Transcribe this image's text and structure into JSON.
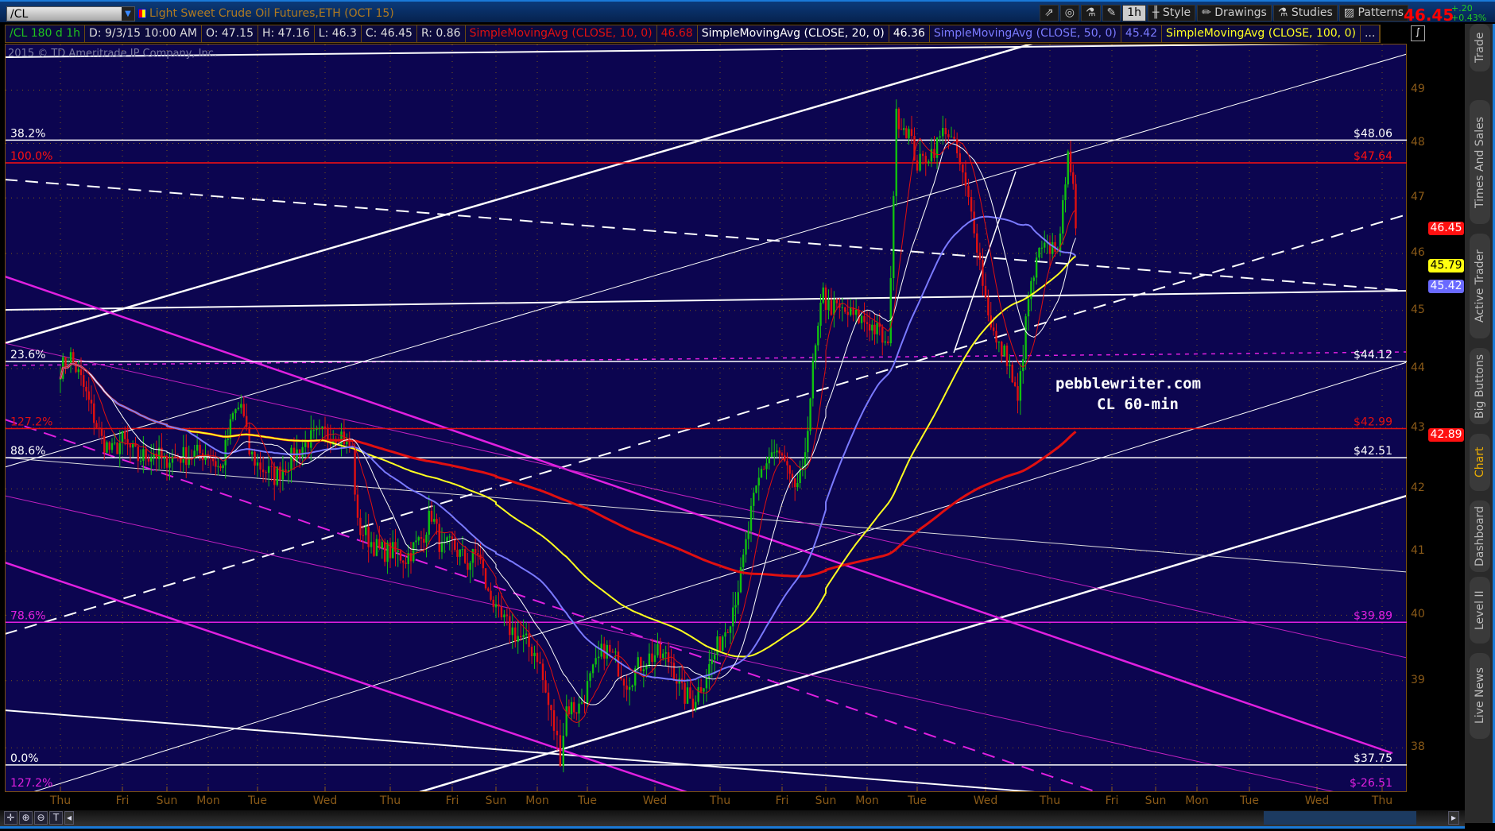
{
  "topbar": {
    "symbol": "/CL",
    "title": "Light Sweet Crude Oil Futures,ETH (OCT 15)",
    "tools": [
      "share-icon",
      "settings-icon",
      "studies-quick-icon",
      "wrench-icon"
    ],
    "aggregation": "1h",
    "style": "Style",
    "drawings": "Drawings",
    "studies": "Studies",
    "patterns": "Patterns",
    "last": "46.45",
    "change": "+.20",
    "change_pct": "+0.43%"
  },
  "studies_header": {
    "items": [
      {
        "text": "/CL 180 d 1h",
        "color": "#1fc21f"
      },
      {
        "text": "D: 9/3/15 10:00 AM",
        "color": "#ddd"
      },
      {
        "text": "O: 47.15",
        "color": "#ddd"
      },
      {
        "text": "H: 47.16",
        "color": "#ddd"
      },
      {
        "text": "L: 46.3",
        "color": "#ddd"
      },
      {
        "text": "C: 46.45",
        "color": "#ddd"
      },
      {
        "text": "R: 0.86",
        "color": "#ddd"
      },
      {
        "text": "SimpleMovingAvg (CLOSE, 10, 0)",
        "color": "#e01010"
      },
      {
        "text": "46.68",
        "color": "#e01010"
      },
      {
        "text": "SimpleMovingAvg (CLOSE, 20, 0)",
        "color": "#fff"
      },
      {
        "text": "46.36",
        "color": "#fff"
      },
      {
        "text": "SimpleMovingAvg (CLOSE, 50, 0)",
        "color": "#7a7aff"
      },
      {
        "text": "45.42",
        "color": "#7a7aff"
      },
      {
        "text": "SimpleMovingAvg (CLOSE, 100, 0)",
        "color": "#ffff20"
      },
      {
        "text": "...",
        "color": "#ddd"
      }
    ]
  },
  "copyright": "2015 © TD Ameritrade IP Company, Inc.",
  "watermark": {
    "line1": "pebblewriter.com",
    "line2": "CL 60-min"
  },
  "fib_levels": [
    {
      "pct": "38.2%",
      "price": 48.06,
      "label": "$48.06",
      "color": "#ffffff"
    },
    {
      "pct": "100.0%",
      "price": 47.64,
      "label": "$47.64",
      "color": "#ff1010"
    },
    {
      "pct": "23.6%",
      "price": 44.12,
      "label": "$44.12",
      "color": "#ffffff"
    },
    {
      "pct": "127.2%",
      "price": 42.99,
      "label": "$42.99",
      "color": "#e01010"
    },
    {
      "pct": "88.6%",
      "price": 42.51,
      "label": "$42.51",
      "color": "#ffffff"
    },
    {
      "pct": "78.6%",
      "price": 39.89,
      "label": "$39.89",
      "color": "#e020e0"
    },
    {
      "pct": "0.0%",
      "price": 37.75,
      "label": "$37.75",
      "color": "#ffffff"
    },
    {
      "pct": "127.2%",
      "price": -26.51,
      "label": "$-26.51",
      "color": "#e020e0"
    }
  ],
  "price_tags": [
    {
      "value": "46.45",
      "price": 46.45,
      "bg": "#ff1010",
      "fg": "#fff"
    },
    {
      "value": "45.79",
      "price": 45.79,
      "bg": "#ffff10",
      "fg": "#000"
    },
    {
      "value": "45.42",
      "price": 45.42,
      "bg": "#6a6aff",
      "fg": "#fff"
    },
    {
      "value": "42.89",
      "price": 42.89,
      "bg": "#ff1010",
      "fg": "#fff"
    }
  ],
  "sidetabs": [
    "Trade",
    "Times And Sales",
    "Active Trader",
    "Big Buttons",
    "Chart",
    "Dashboard",
    "Level II",
    "Live News"
  ],
  "active_tab": "Chart",
  "bottom_tools": [
    "crosshair-icon",
    "zoom-in-icon",
    "zoom-out-icon",
    "text-tool-icon"
  ],
  "chart_data": {
    "type": "candlestick",
    "title": "",
    "y_scale": "log",
    "ylim": [
      37.5,
      49.6
    ],
    "y_ticks": [
      38,
      39,
      40,
      41,
      42,
      43,
      44,
      45,
      46,
      47,
      48,
      49
    ],
    "grid": true,
    "x_ticks": [
      {
        "label": "Thu",
        "date": "8/13"
      },
      {
        "label": "Fri",
        "date": "8/14"
      },
      {
        "label": "Sun",
        "date": "8/16"
      },
      {
        "label": "Mon",
        "date": "8/17"
      },
      {
        "label": "Tue",
        "date": "8/18"
      },
      {
        "label": "Wed",
        "date": "8/19"
      },
      {
        "label": "Thu",
        "date": "8/20"
      },
      {
        "label": "Fri",
        "date": "8/21"
      },
      {
        "label": "Sun",
        "date": "8/23"
      },
      {
        "label": "Mon",
        "date": "8/24"
      },
      {
        "label": "Tue",
        "date": "8/25"
      },
      {
        "label": "Wed",
        "date": "8/26"
      },
      {
        "label": "Thu",
        "date": "8/27"
      },
      {
        "label": "Fri",
        "date": "8/28"
      },
      {
        "label": "Sun",
        "date": "8/30"
      },
      {
        "label": "Mon",
        "date": "8/31"
      },
      {
        "label": "Tue",
        "date": "9/1"
      },
      {
        "label": "Wed",
        "date": "9/2"
      },
      {
        "label": "Thu",
        "date": "9/3"
      },
      {
        "label": "Fri",
        "date": "9/4"
      },
      {
        "label": "Sun",
        "date": "9/6"
      },
      {
        "label": "Mon",
        "date": "9/7"
      },
      {
        "label": "Tue",
        "date": "9/8"
      },
      {
        "label": "Wed",
        "date": "9/9"
      },
      {
        "label": "Thu",
        "date": "9/10"
      }
    ],
    "close_path": [
      [
        "8/13",
        0,
        44.0
      ],
      [
        "8/13",
        4,
        44.2
      ],
      [
        "8/13",
        8,
        43.8
      ],
      [
        "8/13",
        12,
        43.3
      ],
      [
        "8/13",
        16,
        42.8
      ],
      [
        "8/13",
        20,
        42.6
      ],
      [
        "8/14",
        0,
        42.8
      ],
      [
        "8/14",
        6,
        42.5
      ],
      [
        "8/14",
        12,
        42.6
      ],
      [
        "8/14",
        17,
        42.4
      ],
      [
        "8/16",
        18,
        42.5
      ],
      [
        "8/17",
        0,
        42.6
      ],
      [
        "8/17",
        6,
        42.3
      ],
      [
        "8/17",
        12,
        43.2
      ],
      [
        "8/17",
        16,
        43.4
      ],
      [
        "8/17",
        20,
        42.6
      ],
      [
        "8/18",
        0,
        42.4
      ],
      [
        "8/18",
        6,
        42.2
      ],
      [
        "8/18",
        12,
        42.5
      ],
      [
        "8/18",
        18,
        42.8
      ],
      [
        "8/19",
        0,
        42.9
      ],
      [
        "8/19",
        6,
        42.9
      ],
      [
        "8/19",
        10,
        42.6
      ],
      [
        "8/19",
        12,
        41.4
      ],
      [
        "8/19",
        16,
        41.2
      ],
      [
        "8/19",
        20,
        41.0
      ],
      [
        "8/20",
        0,
        41.0
      ],
      [
        "8/20",
        6,
        40.9
      ],
      [
        "8/20",
        12,
        41.2
      ],
      [
        "8/20",
        16,
        41.6
      ],
      [
        "8/20",
        20,
        41.0
      ],
      [
        "8/21",
        0,
        41.1
      ],
      [
        "8/21",
        6,
        40.8
      ],
      [
        "8/21",
        10,
        41.0
      ],
      [
        "8/21",
        14,
        40.3
      ],
      [
        "8/21",
        17,
        40.2
      ],
      [
        "8/23",
        18,
        40.0
      ],
      [
        "8/24",
        0,
        39.4
      ],
      [
        "8/24",
        4,
        38.8
      ],
      [
        "8/24",
        8,
        38.3
      ],
      [
        "8/24",
        11,
        37.9
      ],
      [
        "8/24",
        14,
        38.6
      ],
      [
        "8/24",
        20,
        38.6
      ],
      [
        "8/25",
        0,
        38.9
      ],
      [
        "8/25",
        6,
        39.5
      ],
      [
        "8/25",
        10,
        39.3
      ],
      [
        "8/25",
        14,
        39.0
      ],
      [
        "8/25",
        20,
        39.3
      ],
      [
        "8/26",
        0,
        39.4
      ],
      [
        "8/26",
        6,
        39.3
      ],
      [
        "8/26",
        10,
        38.8
      ],
      [
        "8/26",
        14,
        38.7
      ],
      [
        "8/26",
        20,
        39.2
      ],
      [
        "8/27",
        0,
        39.6
      ],
      [
        "8/27",
        4,
        40.0
      ],
      [
        "8/27",
        8,
        40.6
      ],
      [
        "8/27",
        12,
        41.6
      ],
      [
        "8/27",
        16,
        42.3
      ],
      [
        "8/27",
        20,
        42.6
      ],
      [
        "8/28",
        0,
        42.5
      ],
      [
        "8/28",
        4,
        42.0
      ],
      [
        "8/28",
        8,
        42.2
      ],
      [
        "8/28",
        12,
        44.0
      ],
      [
        "8/28",
        16,
        45.3
      ],
      [
        "8/28",
        17,
        45.3
      ],
      [
        "8/30",
        18,
        45.1
      ],
      [
        "8/31",
        0,
        44.8
      ],
      [
        "8/31",
        6,
        44.6
      ],
      [
        "8/31",
        10,
        44.3
      ],
      [
        "8/31",
        14,
        48.5
      ],
      [
        "8/31",
        20,
        48.2
      ],
      [
        "9/1",
        0,
        47.6
      ],
      [
        "9/1",
        6,
        47.9
      ],
      [
        "9/1",
        10,
        48.3
      ],
      [
        "9/1",
        14,
        47.8
      ],
      [
        "9/1",
        20,
        46.5
      ],
      [
        "9/2",
        0,
        45.2
      ],
      [
        "9/2",
        4,
        44.4
      ],
      [
        "9/2",
        8,
        44.2
      ],
      [
        "9/2",
        12,
        43.4
      ],
      [
        "9/2",
        16,
        45.2
      ],
      [
        "9/2",
        20,
        46.0
      ],
      [
        "9/3",
        0,
        46.1
      ],
      [
        "9/3",
        4,
        46.2
      ],
      [
        "9/3",
        7,
        48.0
      ],
      [
        "9/3",
        9,
        47.1
      ],
      [
        "9/3",
        10,
        46.45
      ]
    ],
    "moving_averages": [
      {
        "name": "SimpleMovingAvg (CLOSE, 10, 0)",
        "period": 10,
        "color": "#e01010"
      },
      {
        "name": "SimpleMovingAvg (CLOSE, 20, 0)",
        "period": 20,
        "color": "#ffffff"
      },
      {
        "name": "SimpleMovingAvg (CLOSE, 50, 0)",
        "period": 50,
        "color": "#7a7aff"
      },
      {
        "name": "SimpleMovingAvg (CLOSE, 100, 0)",
        "period": 100,
        "color": "#ffff20"
      }
    ],
    "colors": {
      "up": "#10c010",
      "down": "#e01010",
      "background": "#0c0550",
      "axis_text": "#8a5a18"
    }
  }
}
